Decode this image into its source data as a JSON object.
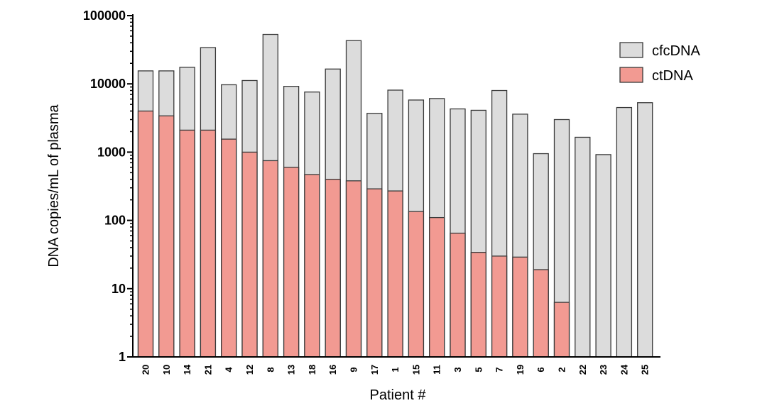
{
  "chart_data": {
    "type": "bar",
    "xlabel": "Patient #",
    "ylabel": "DNA copies/mL of plasma",
    "yscale": "log",
    "ylim": [
      1,
      100000
    ],
    "yticks": [
      "1",
      "10",
      "100",
      "1000",
      "10000",
      "100000"
    ],
    "categories": [
      "20",
      "10",
      "14",
      "21",
      "4",
      "12",
      "8",
      "13",
      "18",
      "16",
      "9",
      "17",
      "1",
      "15",
      "11",
      "3",
      "5",
      "7",
      "19",
      "6",
      "2",
      "22",
      "23",
      "24",
      "25"
    ],
    "series": [
      {
        "name": "cfcDNA",
        "color": "#dcdcdc",
        "values": [
          15500,
          15500,
          17500,
          34000,
          9700,
          11200,
          53000,
          9200,
          7600,
          16500,
          43000,
          3700,
          8100,
          5800,
          6100,
          4300,
          4100,
          8000,
          3600,
          950,
          3000,
          1650,
          920,
          4500,
          5300
        ]
      },
      {
        "name": "ctDNA",
        "color": "#f29a92",
        "values": [
          4000,
          3400,
          2100,
          2100,
          1550,
          1000,
          750,
          600,
          470,
          400,
          380,
          290,
          270,
          135,
          110,
          65,
          34,
          30,
          29,
          19,
          6.3,
          null,
          null,
          null,
          null
        ]
      }
    ],
    "legend": "top-right"
  }
}
